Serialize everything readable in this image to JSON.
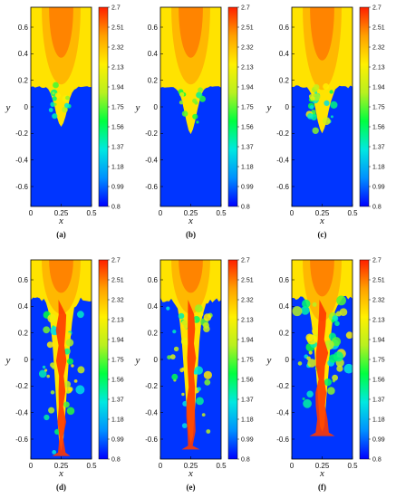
{
  "chart_data": {
    "type": "heatmap",
    "panel_count": 6,
    "xlabel": "x",
    "ylabel": "y",
    "xlim": [
      0,
      0.5
    ],
    "ylim": [
      -0.75,
      0.75
    ],
    "x_ticks": [
      "0",
      "0.25",
      "0.5"
    ],
    "y_ticks": [
      "0.6",
      "0.4",
      "0.2",
      "0",
      "-0.2",
      "-0.4",
      "-0.6"
    ],
    "colorbar": {
      "min": 0.8,
      "max": 2.7,
      "ticks": [
        "2.7",
        "2.51",
        "2.32",
        "2.13",
        "1.94",
        "1.75",
        "1.56",
        "1.37",
        "1.18",
        "0.99",
        "0.8"
      ],
      "colors": [
        "#0000ff",
        "#0090ff",
        "#00e8e0",
        "#00ff40",
        "#b8f020",
        "#fff000",
        "#ffa000",
        "#ff2000"
      ]
    },
    "panels": [
      {
        "caption": "(a)",
        "heavy_value": 2.2,
        "light_value": 0.9,
        "interface_y": 0.15,
        "spike_depth": 0.3,
        "mixing": "low"
      },
      {
        "caption": "(b)",
        "heavy_value": 2.2,
        "light_value": 0.9,
        "interface_y": 0.15,
        "spike_depth": 0.35,
        "mixing": "low"
      },
      {
        "caption": "(c)",
        "heavy_value": 2.2,
        "light_value": 0.9,
        "interface_y": 0.15,
        "spike_depth": 0.35,
        "mixing": "moderate"
      },
      {
        "caption": "(d)",
        "heavy_value": 2.2,
        "light_value": 0.9,
        "interface_y": 0.45,
        "spike_depth": 1.15,
        "mixing": "high"
      },
      {
        "caption": "(e)",
        "heavy_value": 2.2,
        "light_value": 0.9,
        "interface_y": 0.45,
        "spike_depth": 1.1,
        "mixing": "high"
      },
      {
        "caption": "(f)",
        "heavy_value": 2.2,
        "light_value": 0.9,
        "interface_y": 0.45,
        "spike_depth": 1.0,
        "mixing": "very high"
      }
    ]
  }
}
